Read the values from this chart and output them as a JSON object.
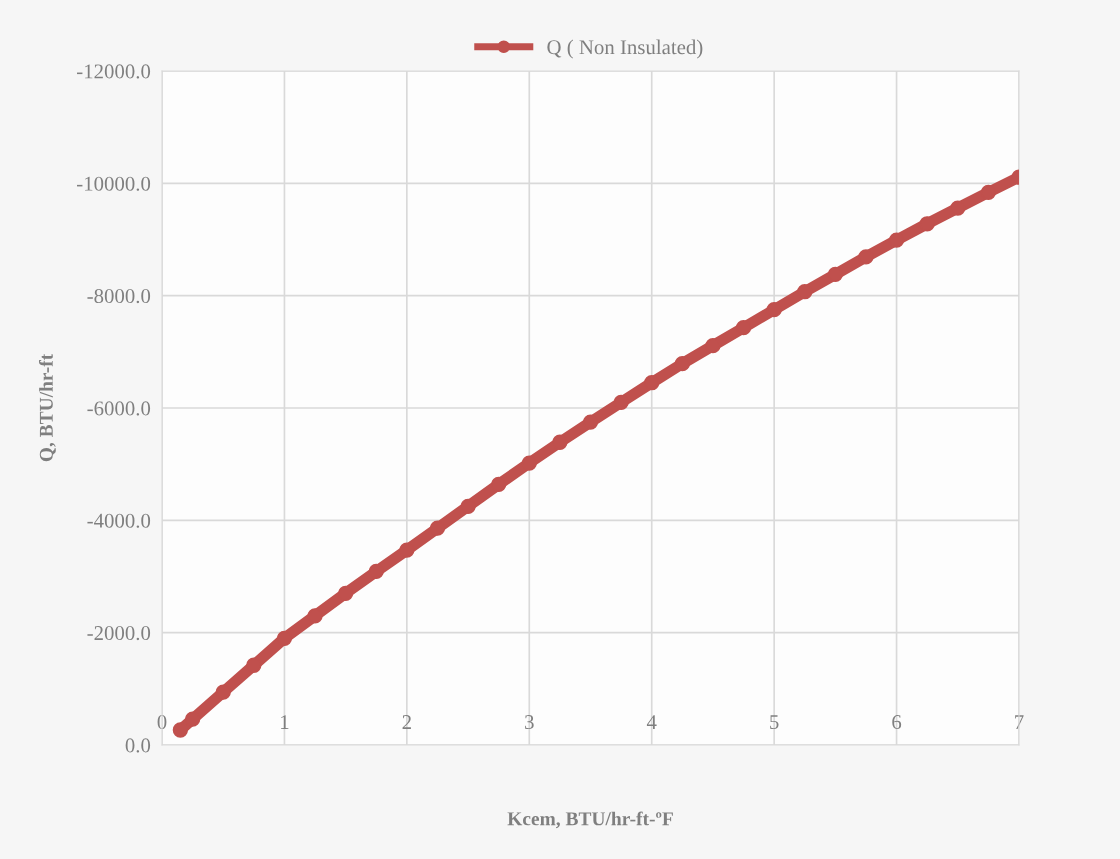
{
  "chart_data": {
    "type": "line",
    "xlabel": "Kcem, BTU/hr-ft-ºF",
    "ylabel": "Q, BTU/hr-ft",
    "x": [
      0.15,
      0.25,
      0.5,
      0.75,
      1,
      1.25,
      1.5,
      1.75,
      2,
      2.25,
      2.5,
      2.75,
      3,
      3.25,
      3.5,
      3.75,
      4,
      4.25,
      4.5,
      4.75,
      5,
      5.25,
      5.5,
      5.75,
      6,
      6.25,
      6.5,
      6.75,
      7
    ],
    "series": [
      {
        "name": "Q ( Non Insulated)",
        "color": "#c0504d",
        "values": [
          -267,
          -460,
          -940,
          -1420,
          -1900,
          -2300,
          -2700,
          -3090,
          -3470,
          -3860,
          -4250,
          -4640,
          -5020,
          -5390,
          -5750,
          -6100,
          -6450,
          -6790,
          -7110,
          -7430,
          -7750,
          -8070,
          -8380,
          -8690,
          -8990,
          -9280,
          -9560,
          -9840,
          -10110
        ]
      }
    ],
    "xlim": [
      0,
      7
    ],
    "xticks": [
      0,
      1,
      2,
      3,
      4,
      5,
      6,
      7
    ],
    "ylim": [
      0,
      -12000
    ],
    "yticks": [
      {
        "value": 0,
        "label": "0.0"
      },
      {
        "value": -2000,
        "label": "-2000.0"
      },
      {
        "value": -4000,
        "label": "-4000.0"
      },
      {
        "value": -6000,
        "label": "-6000.0"
      },
      {
        "value": -8000,
        "label": "-8000.0"
      },
      {
        "value": -10000,
        "label": "-10000.0"
      },
      {
        "value": -12000,
        "label": "-12000.0"
      }
    ],
    "grid": true,
    "legend": "top",
    "marker": "circle",
    "line_style": "solid"
  }
}
